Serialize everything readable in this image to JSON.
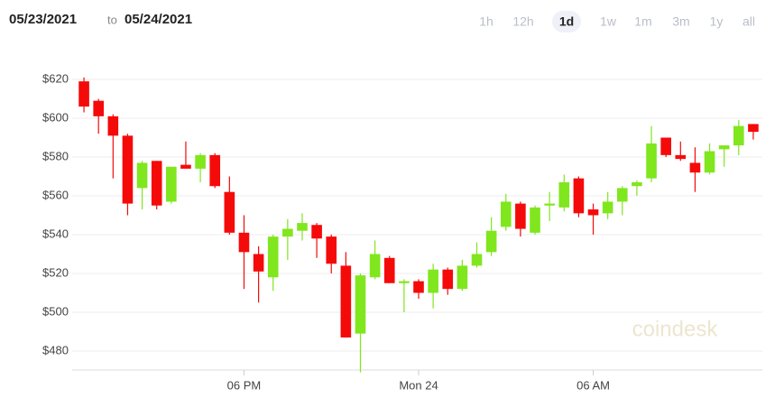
{
  "header": {
    "from": "05/23/2021",
    "to_word": "to",
    "to": "05/24/2021",
    "ranges": [
      "1h",
      "12h",
      "1d",
      "1w",
      "1m",
      "3m",
      "1y",
      "all"
    ],
    "selected_range": "1d"
  },
  "watermark": "coindesk",
  "chart_data": {
    "type": "candlestick",
    "up_color": "#80e61e",
    "down_color": "#f50a0a",
    "grid": true,
    "ylim": [
      460,
      630
    ],
    "yticks": [
      {
        "value": 480,
        "label": "$480"
      },
      {
        "value": 500,
        "label": "$500"
      },
      {
        "value": 520,
        "label": "$520"
      },
      {
        "value": 540,
        "label": "$540"
      },
      {
        "value": 560,
        "label": "$560"
      },
      {
        "value": 580,
        "label": "$580"
      },
      {
        "value": 600,
        "label": "$600"
      },
      {
        "value": 620,
        "label": "$620"
      }
    ],
    "xlim": [
      -0.5,
      46.5
    ],
    "xticks": [
      {
        "value": 11,
        "label": "06 PM"
      },
      {
        "value": 23,
        "label": "Mon 24"
      },
      {
        "value": 35,
        "label": "06 AM"
      }
    ],
    "open": [
      619,
      609,
      601,
      591,
      564,
      578,
      557,
      576,
      574,
      581,
      562,
      541,
      530,
      518,
      539,
      542,
      545,
      539,
      524,
      489,
      518,
      528,
      515,
      516,
      510,
      522,
      512,
      524,
      531,
      544,
      556,
      541,
      555,
      554,
      569,
      553,
      551,
      557,
      565,
      569,
      590,
      581,
      577,
      572,
      584,
      586,
      597
    ],
    "high": [
      621,
      610,
      602,
      592,
      578,
      578,
      575,
      588,
      582,
      582,
      570,
      550,
      534,
      540,
      548,
      551,
      546,
      540,
      531,
      520,
      537,
      529,
      517,
      517,
      525,
      523,
      527,
      536,
      549,
      561,
      557,
      555,
      562,
      571,
      570,
      556,
      562,
      565,
      568,
      596,
      590,
      588,
      585,
      587,
      586,
      599,
      597
    ],
    "low": [
      603,
      592,
      569,
      550,
      553,
      553,
      556,
      574,
      567,
      564,
      540,
      512,
      505,
      511,
      527,
      537,
      528,
      520,
      487,
      469,
      517,
      515,
      500,
      507,
      502,
      509,
      511,
      523,
      529,
      542,
      539,
      540,
      547,
      552,
      549,
      540,
      548,
      550,
      560,
      567,
      580,
      578,
      562,
      571,
      575,
      581,
      589
    ],
    "close": [
      606,
      601,
      591,
      556,
      577,
      555,
      575,
      574,
      581,
      565,
      541,
      531,
      521,
      539,
      543,
      546,
      538,
      525,
      487,
      519,
      530,
      515,
      516,
      510,
      522,
      512,
      524,
      530,
      542,
      557,
      543,
      554,
      556,
      567,
      551,
      550,
      557,
      564,
      567,
      587,
      581,
      579,
      572,
      583,
      586,
      596,
      593
    ]
  }
}
